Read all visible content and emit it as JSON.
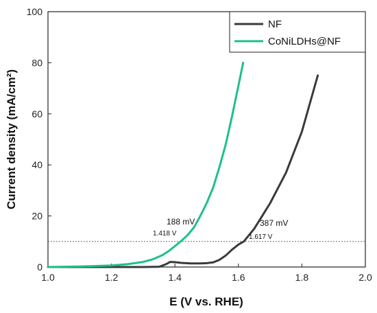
{
  "chart_data": {
    "type": "line",
    "xlabel": "E (V vs. RHE)",
    "ylabel": "Current density (mA/cm²)",
    "xlim": [
      1.0,
      2.0
    ],
    "ylim": [
      0,
      100
    ],
    "xticks": [
      "1.0",
      "1.2",
      "1.4",
      "1.6",
      "1.8",
      "2.0"
    ],
    "yticks": [
      "0",
      "20",
      "40",
      "60",
      "80",
      "100"
    ],
    "grid": false,
    "legend_position": "top-right",
    "reference_line": {
      "y": 10,
      "style": "dashed"
    },
    "series": [
      {
        "name": "NF",
        "color": "#3a3a3a",
        "x": [
          1.0,
          1.2,
          1.3,
          1.35,
          1.37,
          1.385,
          1.4,
          1.42,
          1.45,
          1.48,
          1.5,
          1.52,
          1.54,
          1.56,
          1.58,
          1.6,
          1.617,
          1.65,
          1.7,
          1.75,
          1.8,
          1.85
        ],
        "y": [
          0,
          0,
          0,
          0.1,
          1.0,
          2.0,
          1.9,
          1.6,
          1.4,
          1.4,
          1.5,
          1.8,
          2.8,
          4.5,
          6.8,
          8.8,
          10,
          15,
          25,
          37,
          53,
          75
        ]
      },
      {
        "name": "CoNiLDHs@NF",
        "color": "#1dbf8e",
        "x": [
          1.0,
          1.1,
          1.2,
          1.25,
          1.3,
          1.33,
          1.36,
          1.38,
          1.4,
          1.418,
          1.44,
          1.46,
          1.48,
          1.5,
          1.52,
          1.54,
          1.56,
          1.58,
          1.6,
          1.615
        ],
        "y": [
          0,
          0.2,
          0.6,
          1.1,
          2.0,
          3.0,
          4.6,
          6.2,
          8.2,
          10,
          12.5,
          15.5,
          20,
          25,
          31,
          39,
          48,
          59,
          71,
          80
        ]
      }
    ],
    "annotations": [
      {
        "text": "188 mV"
      },
      {
        "text": "1.418 V"
      },
      {
        "text": "387 mV"
      },
      {
        "text": "1.617 V"
      }
    ]
  }
}
